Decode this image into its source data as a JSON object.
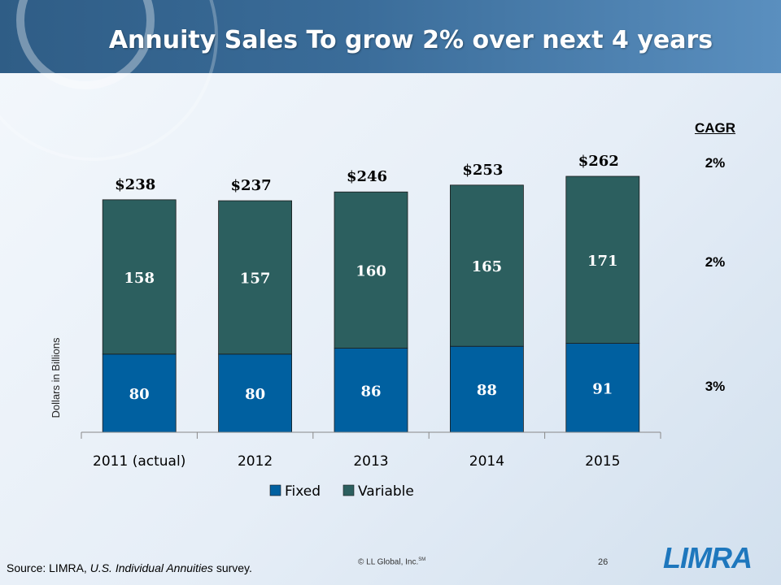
{
  "slide": {
    "title": "Annuity Sales To grow 2% over next 4 years",
    "source_prefix": "Source: LIMRA, ",
    "source_publication": "U.S. Individual Annuities",
    "source_suffix": " survey.",
    "copyright": "© LL Global, Inc.",
    "copyright_mark": "SM",
    "page_number": "26",
    "logo_text": "LIMRA"
  },
  "cagr": {
    "title": "CAGR",
    "values": [
      "2%",
      "2%",
      "3%"
    ]
  },
  "colors": {
    "fixed": "#0060A0",
    "variable": "#2C5F5F",
    "header": "#2F5D86"
  },
  "chart_data": {
    "type": "bar",
    "stacked": true,
    "categories": [
      "2011 (actual)",
      "2012",
      "2013",
      "2014",
      "2015"
    ],
    "series": [
      {
        "name": "Fixed",
        "values": [
          80,
          80,
          86,
          88,
          91
        ]
      },
      {
        "name": "Variable",
        "values": [
          158,
          157,
          160,
          165,
          171
        ]
      }
    ],
    "totals": [
      238,
      237,
      246,
      253,
      262
    ],
    "total_labels": [
      "$238",
      "$237",
      "$246",
      "$253",
      "$262"
    ],
    "ylabel": "Dollars in Billions",
    "legend": "bottom",
    "grid": false,
    "ylim": [
      0,
      262
    ]
  }
}
